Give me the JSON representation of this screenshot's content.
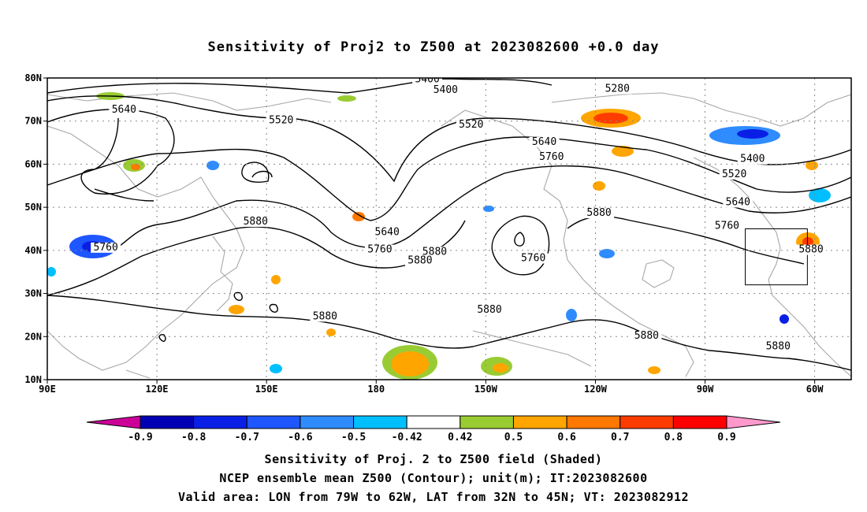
{
  "title": "Sensitivity of Proj2 to Z500 at 2023082600 +0.0 day",
  "axes": {
    "lon_ticks": [
      "90E",
      "120E",
      "150E",
      "180",
      "150W",
      "120W",
      "90W",
      "60W"
    ],
    "lat_ticks": [
      "80N",
      "70N",
      "60N",
      "50N",
      "40N",
      "30N",
      "20N",
      "10N"
    ]
  },
  "contour_labels": [
    {
      "id": "c5400a",
      "text": "5400",
      "lon": 194.0,
      "lat": 79.0
    },
    {
      "id": "c5400b",
      "text": "5400",
      "lon": 199.0,
      "lat": 76.5
    },
    {
      "id": "c5280",
      "text": "5280",
      "lon": 246.0,
      "lat": 76.8
    },
    {
      "id": "c5640a",
      "text": "5640",
      "lon": 111.0,
      "lat": 72.0
    },
    {
      "id": "c5520a",
      "text": "5520",
      "lon": 154.0,
      "lat": 69.5
    },
    {
      "id": "c5520b",
      "text": "5520",
      "lon": 206.0,
      "lat": 68.5
    },
    {
      "id": "c5640b",
      "text": "5640",
      "lon": 226.0,
      "lat": 64.5
    },
    {
      "id": "c5760a",
      "text": "5760",
      "lon": 228.0,
      "lat": 61.0
    },
    {
      "id": "c5400c",
      "text": "5400",
      "lon": 283.0,
      "lat": 60.5
    },
    {
      "id": "c5520c",
      "text": "5520",
      "lon": 278.0,
      "lat": 57.0
    },
    {
      "id": "c5640c",
      "text": "5640",
      "lon": 279.0,
      "lat": 50.5
    },
    {
      "id": "c5880a",
      "text": "5880",
      "lon": 241.0,
      "lat": 48.0
    },
    {
      "id": "c5760b",
      "text": "5760",
      "lon": 276.0,
      "lat": 45.0
    },
    {
      "id": "c5880b",
      "text": "5880",
      "lon": 147.0,
      "lat": 46.0
    },
    {
      "id": "c5640d",
      "text": "5640",
      "lon": 183.0,
      "lat": 43.5
    },
    {
      "id": "c5760c",
      "text": "5760",
      "lon": 106.0,
      "lat": 40.0
    },
    {
      "id": "c5760d",
      "text": "5760",
      "lon": 181.0,
      "lat": 39.5
    },
    {
      "id": "c5880c",
      "text": "5880",
      "lon": 196.0,
      "lat": 39.0
    },
    {
      "id": "c5880d",
      "text": "5880",
      "lon": 192.0,
      "lat": 37.0
    },
    {
      "id": "c5760e",
      "text": "5760",
      "lon": 223.0,
      "lat": 37.5
    },
    {
      "id": "c5880e",
      "text": "5880",
      "lon": 299.0,
      "lat": 39.5
    },
    {
      "id": "c5880f",
      "text": "5880",
      "lon": 166.0,
      "lat": 24.0
    },
    {
      "id": "c5880g",
      "text": "5880",
      "lon": 211.0,
      "lat": 25.5
    },
    {
      "id": "c5880h",
      "text": "5880",
      "lon": 254.0,
      "lat": 19.5
    },
    {
      "id": "c5880i",
      "text": "5880",
      "lon": 290.0,
      "lat": 17.0
    }
  ],
  "colorbar": {
    "labels": [
      "-0.9",
      "-0.8",
      "-0.7",
      "-0.6",
      "-0.5",
      "-0.42",
      "0.42",
      "0.5",
      "0.6",
      "0.7",
      "0.8",
      "0.9"
    ],
    "colors": [
      "#cc0099",
      "#0000b4",
      "#0a1fe6",
      "#1e56ff",
      "#2f8cff",
      "#00bfff",
      "#ffffff",
      "#99cc33",
      "#ffa500",
      "#ff7800",
      "#ff3c00",
      "#ff0000",
      "#ff99cc"
    ]
  },
  "valid_box": {
    "lon_min": 281,
    "lon_max": 298,
    "lat_min": 32,
    "lat_max": 45
  },
  "captions": [
    "Sensitivity of Proj. 2 to Z500 field (Shaded)",
    "NCEP ensemble mean Z500 (Contour); unit(m); IT:2023082600",
    "Valid area: LON from 79W to 62W, LAT from 32N to 45N; VT: 2023082912"
  ]
}
